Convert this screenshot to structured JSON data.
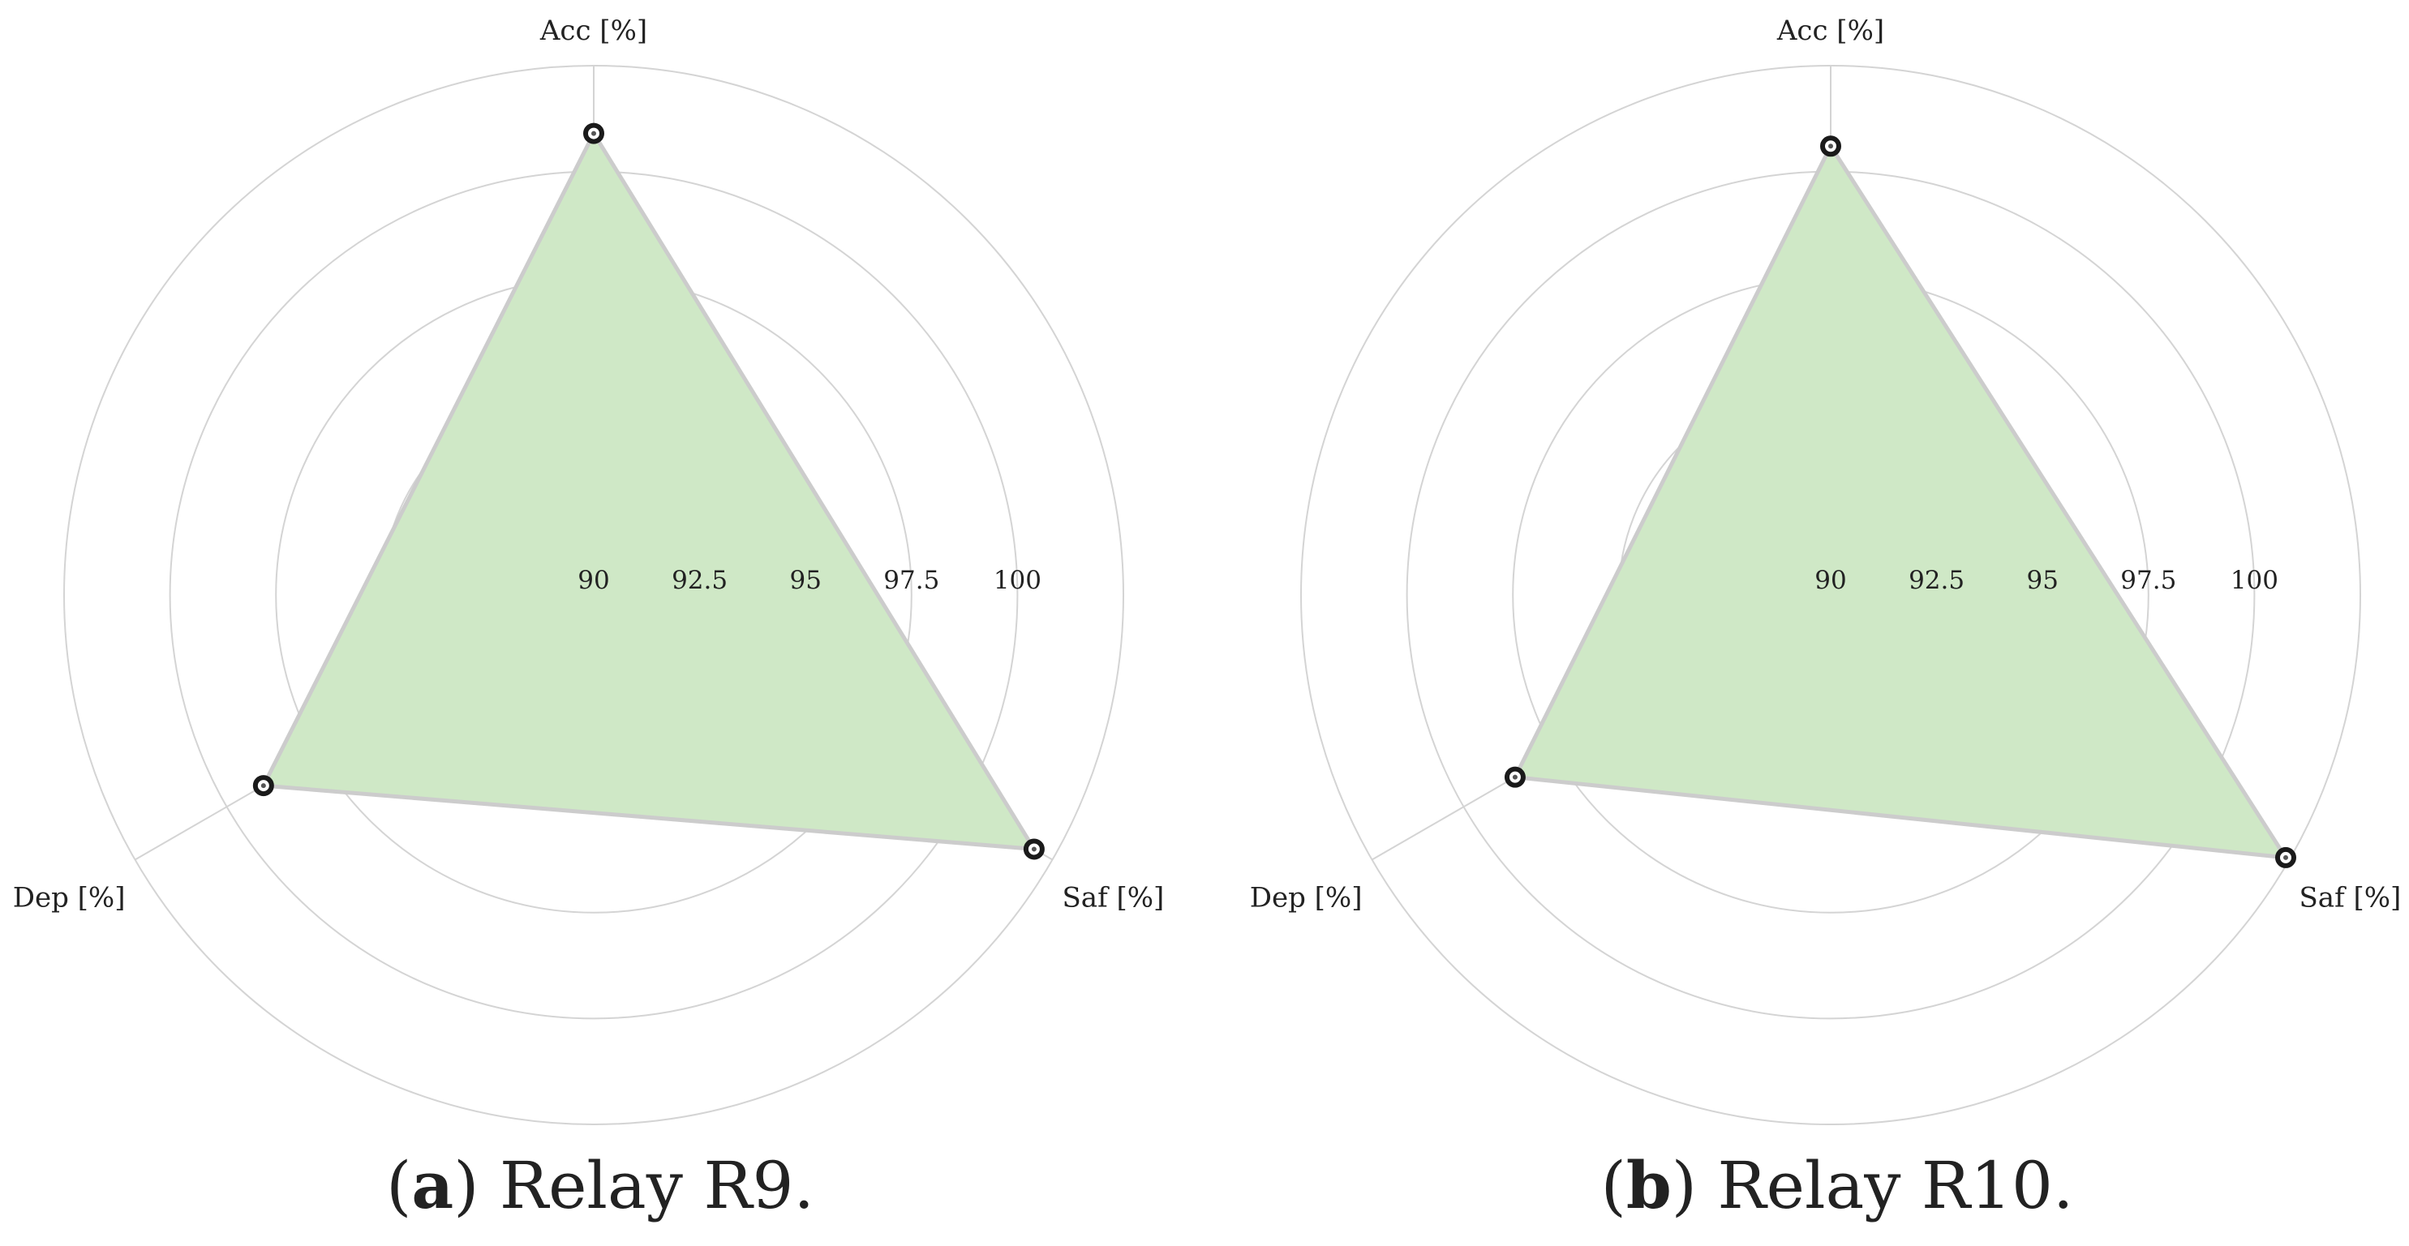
{
  "chart_data": [
    {
      "type": "radar",
      "title": "",
      "caption_letter": "a",
      "caption_text": "Relay R9.",
      "axes": [
        "Acc [%]",
        "Saf [%]",
        "Dep [%]"
      ],
      "r_ticks": [
        "90",
        "92.5",
        "95",
        "97.5",
        "100"
      ],
      "rlim": [
        90,
        100
      ],
      "grid": true,
      "series": [
        {
          "values": [
            98.4,
            99.5,
            96.5
          ]
        }
      ],
      "fill_color": "#cfe8c6",
      "line_color": "#cccccc",
      "marker_color": "#1a1a1a"
    },
    {
      "type": "radar",
      "title": "",
      "caption_letter": "b",
      "caption_text": "Relay R10.",
      "axes": [
        "Acc [%]",
        "Saf [%]",
        "Dep [%]"
      ],
      "r_ticks": [
        "90",
        "92.5",
        "95",
        "97.5",
        "100"
      ],
      "rlim": [
        90,
        100
      ],
      "grid": true,
      "series": [
        {
          "values": [
            98.1,
            99.9,
            96.1
          ]
        }
      ],
      "fill_color": "#cfe8c6",
      "line_color": "#cccccc",
      "marker_color": "#1a1a1a"
    }
  ]
}
